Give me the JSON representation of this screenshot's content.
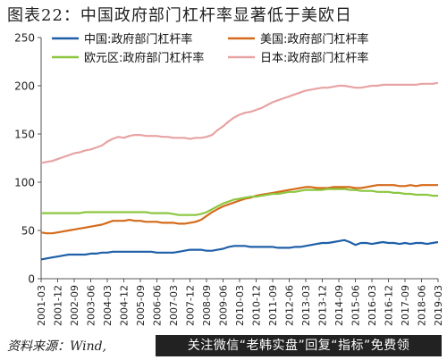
{
  "title": "图表22：中国政府部门杠杆率显著低于美欧日",
  "source": "资料来源：Wind,",
  "watermark": "关注微信“老韩实盘”回复“指标”免费领",
  "chart_data": {
    "type": "line",
    "ylim": [
      0,
      250
    ],
    "yticks": [
      0,
      50,
      100,
      150,
      200,
      250
    ],
    "grid": false,
    "legend": "top-left, two columns",
    "x": [
      "2001-03",
      "2001-06",
      "2001-09",
      "2001-12",
      "2002-03",
      "2002-06",
      "2002-09",
      "2002-12",
      "2003-03",
      "2003-06",
      "2003-09",
      "2003-12",
      "2004-03",
      "2004-06",
      "2004-09",
      "2004-12",
      "2005-03",
      "2005-06",
      "2005-09",
      "2005-12",
      "2006-03",
      "2006-06",
      "2006-09",
      "2006-12",
      "2007-03",
      "2007-06",
      "2007-09",
      "2007-12",
      "2008-03",
      "2008-06",
      "2008-09",
      "2008-12",
      "2009-03",
      "2009-06",
      "2009-09",
      "2009-12",
      "2010-03",
      "2010-06",
      "2010-09",
      "2010-12",
      "2011-03",
      "2011-06",
      "2011-09",
      "2011-12",
      "2012-03",
      "2012-06",
      "2012-09",
      "2012-12",
      "2013-03",
      "2013-06",
      "2013-09",
      "2013-12",
      "2014-03",
      "2014-06",
      "2014-09",
      "2014-12",
      "2015-03",
      "2015-06",
      "2015-09",
      "2015-12",
      "2016-03",
      "2016-06",
      "2016-09",
      "2016-12",
      "2017-03",
      "2017-06",
      "2017-09",
      "2017-12",
      "2018-03",
      "2018-06",
      "2018-09",
      "2018-12",
      "2019-03"
    ],
    "xticks": [
      "2001-03",
      "2001-12",
      "2002-09",
      "2003-06",
      "2004-03",
      "2004-12",
      "2005-09",
      "2006-06",
      "2007-03",
      "2007-12",
      "2008-09",
      "2009-06",
      "2010-03",
      "2010-12",
      "2011-09",
      "2012-06",
      "2013-03",
      "2013-12",
      "2014-09",
      "2015-06",
      "2016-03",
      "2016-12",
      "2017-09",
      "2018-06",
      "2019-03"
    ],
    "series": [
      {
        "name": "中国:政府部门杠杆率",
        "color": "#1f5fa8",
        "values": [
          20,
          21,
          22,
          23,
          24,
          25,
          25,
          25,
          25,
          26,
          26,
          27,
          27,
          28,
          28,
          28,
          28,
          28,
          28,
          28,
          28,
          27,
          27,
          27,
          27,
          28,
          29,
          30,
          30,
          30,
          29,
          29,
          30,
          31,
          33,
          34,
          34,
          34,
          33,
          33,
          33,
          33,
          33,
          32,
          32,
          32,
          33,
          33,
          34,
          35,
          36,
          37,
          37,
          38,
          39,
          40,
          38,
          35,
          37,
          37,
          36,
          37,
          38,
          37,
          37,
          36,
          37,
          36,
          37,
          37,
          36,
          37,
          38
        ]
      },
      {
        "name": "美国:政府部门杠杆率",
        "color": "#d46a1a",
        "values": [
          48,
          47,
          47,
          48,
          49,
          50,
          51,
          52,
          53,
          54,
          55,
          56,
          58,
          60,
          60,
          60,
          61,
          60,
          60,
          59,
          59,
          59,
          58,
          58,
          58,
          57,
          57,
          58,
          59,
          61,
          65,
          69,
          72,
          75,
          77,
          79,
          81,
          83,
          84,
          86,
          87,
          88,
          89,
          90,
          91,
          92,
          93,
          94,
          95,
          95,
          94,
          94,
          94,
          95,
          95,
          95,
          95,
          94,
          94,
          95,
          96,
          97,
          97,
          97,
          97,
          96,
          96,
          97,
          96,
          97,
          97,
          97,
          97
        ]
      },
      {
        "name": "欧元区:政府部门杠杆率",
        "color": "#8cc63f",
        "values": [
          68,
          68,
          68,
          68,
          68,
          68,
          68,
          68,
          69,
          69,
          69,
          69,
          69,
          69,
          69,
          69,
          69,
          69,
          69,
          69,
          68,
          68,
          68,
          68,
          67,
          66,
          66,
          66,
          66,
          67,
          69,
          72,
          75,
          78,
          80,
          82,
          83,
          84,
          85,
          85,
          86,
          87,
          88,
          88,
          89,
          90,
          90,
          91,
          92,
          92,
          92,
          92,
          93,
          93,
          93,
          93,
          92,
          92,
          91,
          91,
          91,
          90,
          90,
          90,
          89,
          89,
          88,
          88,
          87,
          87,
          87,
          86,
          86
        ]
      },
      {
        "name": "日本:政府部门杠杆率",
        "color": "#e8a3a3",
        "values": [
          120,
          121,
          122,
          124,
          126,
          128,
          130,
          131,
          133,
          134,
          136,
          138,
          142,
          145,
          147,
          146,
          148,
          149,
          149,
          148,
          148,
          148,
          147,
          147,
          146,
          146,
          146,
          145,
          146,
          146,
          147,
          149,
          154,
          158,
          163,
          167,
          170,
          172,
          173,
          175,
          177,
          180,
          183,
          185,
          187,
          189,
          191,
          193,
          195,
          196,
          197,
          198,
          198,
          199,
          200,
          200,
          199,
          198,
          198,
          199,
          200,
          200,
          201,
          201,
          201,
          201,
          201,
          201,
          201,
          202,
          202,
          202,
          203
        ]
      }
    ]
  }
}
